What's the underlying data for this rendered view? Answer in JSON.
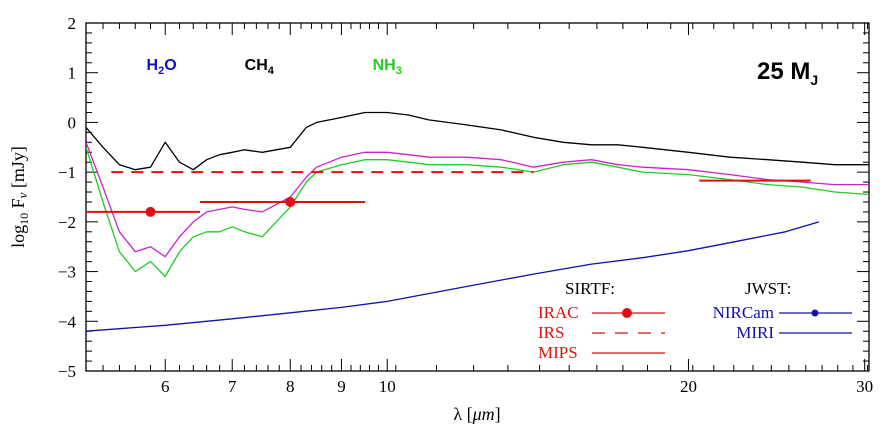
{
  "chart_data": {
    "type": "line",
    "xlabel_prefix": "λ [",
    "xlabel_unit": "μm",
    "xlabel_suffix": "]",
    "ylabel_prefix": "log",
    "ylabel_sub": "10",
    "ylabel_mid": " F",
    "ylabel_nu": "ν",
    "ylabel_suffix": " [mJy]",
    "x_scale": "log",
    "xlim": [
      5.0,
      30.3
    ],
    "ylim": [
      -5,
      2
    ],
    "x_ticks": [
      6,
      7,
      8,
      9,
      10,
      20,
      30
    ],
    "x_tick_labels": [
      "6",
      "7",
      "8",
      "9",
      "10",
      "20",
      "30"
    ],
    "y_ticks": [
      -5,
      -4,
      -3,
      -2,
      -1,
      0,
      1,
      2
    ],
    "y_tick_labels": [
      "−5",
      "−4",
      "−3",
      "−2",
      "−1",
      "0",
      "1",
      "2"
    ],
    "mass_label": {
      "text": "25 M",
      "sub": "J"
    },
    "molecule_labels": [
      {
        "name": "H",
        "sub": "2",
        "tail": "O",
        "x": 5.95,
        "y": 1.05,
        "color": "#1010c0"
      },
      {
        "name": "CH",
        "sub": "4",
        "tail": "",
        "x": 7.45,
        "y": 1.05,
        "color": "#000000"
      },
      {
        "name": "NH",
        "sub": "3",
        "tail": "",
        "x": 10.0,
        "y": 1.05,
        "color": "#22cc22"
      }
    ],
    "series": [
      {
        "color": "#000000",
        "x": [
          5.0,
          5.2,
          5.4,
          5.6,
          5.8,
          6.0,
          6.2,
          6.4,
          6.6,
          6.8,
          7.0,
          7.2,
          7.5,
          8.0,
          8.3,
          8.5,
          9.0,
          9.5,
          10.0,
          10.5,
          11.0,
          12.0,
          13.0,
          14.0,
          15.0,
          16.0,
          17.0,
          18.0,
          20.0,
          22.0,
          24.0,
          26.0,
          28.0,
          30.3
        ],
        "y": [
          -0.1,
          -0.5,
          -0.85,
          -0.95,
          -0.9,
          -0.4,
          -0.8,
          -0.95,
          -0.75,
          -0.65,
          -0.6,
          -0.55,
          -0.6,
          -0.5,
          -0.1,
          0.0,
          0.1,
          0.2,
          0.2,
          0.15,
          0.05,
          -0.05,
          -0.15,
          -0.3,
          -0.4,
          -0.45,
          -0.45,
          -0.5,
          -0.6,
          -0.7,
          -0.75,
          -0.8,
          -0.85,
          -0.85
        ]
      },
      {
        "color": "#cc22cc",
        "x": [
          5.0,
          5.2,
          5.4,
          5.6,
          5.8,
          6.0,
          6.2,
          6.4,
          6.6,
          6.8,
          7.0,
          7.2,
          7.5,
          8.0,
          8.3,
          8.5,
          9.0,
          9.5,
          10.0,
          10.5,
          11.0,
          12.0,
          13.0,
          14.0,
          15.0,
          16.0,
          17.0,
          18.0,
          20.0,
          22.0,
          24.0,
          26.0,
          28.0,
          30.3
        ],
        "y": [
          -0.4,
          -1.3,
          -2.2,
          -2.6,
          -2.5,
          -2.7,
          -2.3,
          -2.0,
          -1.8,
          -1.75,
          -1.7,
          -1.75,
          -1.8,
          -1.5,
          -1.1,
          -0.9,
          -0.7,
          -0.6,
          -0.6,
          -0.65,
          -0.7,
          -0.7,
          -0.75,
          -0.9,
          -0.8,
          -0.75,
          -0.85,
          -0.9,
          -0.95,
          -1.05,
          -1.15,
          -1.2,
          -1.25,
          -1.25
        ]
      },
      {
        "color": "#22cc22",
        "x": [
          5.0,
          5.2,
          5.4,
          5.6,
          5.8,
          6.0,
          6.2,
          6.4,
          6.6,
          6.8,
          7.0,
          7.2,
          7.5,
          8.0,
          8.3,
          8.5,
          9.0,
          9.5,
          10.0,
          10.5,
          11.0,
          12.0,
          13.0,
          14.0,
          15.0,
          16.0,
          17.0,
          18.0,
          20.0,
          22.0,
          24.0,
          26.0,
          28.0,
          30.3
        ],
        "y": [
          -0.5,
          -1.6,
          -2.6,
          -3.0,
          -2.8,
          -3.1,
          -2.6,
          -2.3,
          -2.2,
          -2.2,
          -2.1,
          -2.2,
          -2.3,
          -1.7,
          -1.2,
          -1.0,
          -0.85,
          -0.75,
          -0.75,
          -0.8,
          -0.85,
          -0.85,
          -0.9,
          -1.0,
          -0.85,
          -0.8,
          -0.9,
          -1.0,
          -1.05,
          -1.15,
          -1.25,
          -1.3,
          -1.4,
          -1.45
        ]
      },
      {
        "color": "#1111aa",
        "x": [
          5.0,
          6.0,
          7.0,
          8.0,
          9.0,
          10.0,
          12.0,
          14.0,
          16.0,
          18.0,
          20.0,
          22.0,
          25.0,
          27.0
        ],
        "y": [
          -4.2,
          -4.08,
          -3.95,
          -3.83,
          -3.72,
          -3.6,
          -3.3,
          -3.05,
          -2.85,
          -2.72,
          -2.58,
          -2.42,
          -2.2,
          -2.0
        ]
      }
    ],
    "sensitivity_bars": [
      {
        "instrument": "IRAC",
        "x0": 5.0,
        "x1": 6.5,
        "y": -1.8,
        "marker_x": 5.8,
        "style": "solid",
        "color": "#e01010"
      },
      {
        "instrument": "IRAC",
        "x0": 6.5,
        "x1": 9.5,
        "y": -1.6,
        "marker_x": 8.0,
        "style": "solid",
        "color": "#e01010"
      },
      {
        "instrument": "IRS",
        "x0": 5.3,
        "x1": 14.0,
        "y": -1.0,
        "style": "dashed",
        "color": "#e01010"
      },
      {
        "instrument": "MIPS",
        "x0": 20.5,
        "x1": 26.5,
        "y": -1.17,
        "style": "solid",
        "color": "#e01010"
      }
    ],
    "legend": {
      "sirtf_title": "SIRTF:",
      "sirtf_items": [
        {
          "label": "IRAC",
          "style": "solid-dot",
          "color": "#e01010"
        },
        {
          "label": "IRS",
          "style": "dashed",
          "color": "#e01010"
        },
        {
          "label": "MIPS",
          "style": "solid",
          "color": "#e01010"
        }
      ],
      "jwst_title": "JWST:",
      "jwst_items": [
        {
          "label": "NIRCam",
          "style": "solid-dot",
          "color": "#1111aa"
        },
        {
          "label": "MIRI",
          "style": "solid",
          "color": "#1111aa"
        }
      ]
    }
  }
}
